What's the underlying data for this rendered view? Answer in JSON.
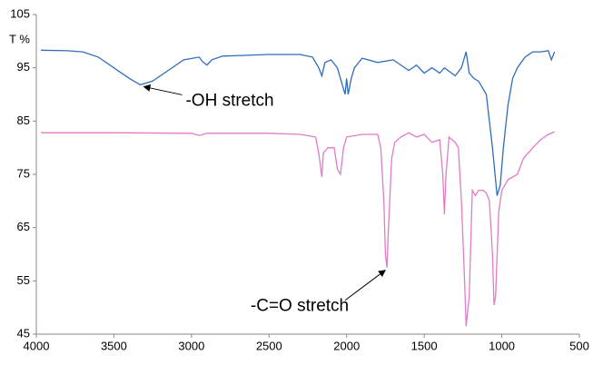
{
  "chart_data": {
    "type": "line",
    "y_label": "T %",
    "xlim": [
      4000,
      500
    ],
    "xticks": [
      4000,
      3500,
      3000,
      2500,
      2000,
      1500,
      1000,
      500
    ],
    "ylim": [
      45,
      105
    ],
    "yticks": [
      45,
      55,
      65,
      75,
      85,
      95,
      105
    ],
    "grid": false,
    "series": [
      {
        "color": "#2f6dbb",
        "x": [
          3970,
          3800,
          3700,
          3600,
          3500,
          3400,
          3330,
          3250,
          3150,
          3050,
          2950,
          2930,
          2900,
          2870,
          2800,
          2500,
          2300,
          2220,
          2180,
          2160,
          2140,
          2100,
          2060,
          2030,
          2010,
          2000,
          1990,
          1970,
          1950,
          1900,
          1800,
          1700,
          1600,
          1550,
          1500,
          1450,
          1400,
          1370,
          1300,
          1260,
          1230,
          1210,
          1180,
          1150,
          1120,
          1100,
          1080,
          1060,
          1040,
          1030,
          1010,
          990,
          960,
          930,
          900,
          850,
          800,
          750,
          700,
          680,
          660
        ],
        "values": [
          98.3,
          98.2,
          98,
          97,
          95,
          93,
          91.8,
          92.5,
          94.5,
          96.5,
          97,
          96.2,
          95.5,
          96.5,
          97.2,
          97.5,
          97.5,
          97,
          95,
          93.5,
          96,
          96.5,
          95,
          92,
          90,
          93,
          90,
          93,
          95,
          96.8,
          96,
          96.5,
          94.5,
          95.5,
          94,
          95,
          94,
          95,
          93.5,
          95,
          98,
          94,
          93,
          92.5,
          91,
          90,
          85,
          80,
          74,
          71,
          73,
          80,
          88,
          93,
          95,
          97,
          98,
          98,
          98.2,
          96.5,
          98
        ]
      },
      {
        "color": "#e07cc6",
        "x": [
          3970,
          3500,
          3000,
          2950,
          2900,
          2500,
          2300,
          2200,
          2180,
          2160,
          2150,
          2120,
          2080,
          2060,
          2040,
          2020,
          2000,
          1900,
          1800,
          1780,
          1760,
          1750,
          1740,
          1730,
          1710,
          1690,
          1650,
          1600,
          1550,
          1500,
          1450,
          1400,
          1380,
          1370,
          1360,
          1340,
          1300,
          1280,
          1260,
          1240,
          1230,
          1210,
          1190,
          1170,
          1150,
          1120,
          1100,
          1080,
          1060,
          1050,
          1040,
          1020,
          1000,
          960,
          900,
          860,
          800,
          750,
          700,
          660
        ],
        "values": [
          82.8,
          82.8,
          82.7,
          82.3,
          82.7,
          82.7,
          82.5,
          82,
          79,
          74.5,
          79,
          80,
          80,
          76,
          75,
          80,
          82,
          82.5,
          82.5,
          80,
          70,
          60,
          57.5,
          65,
          78,
          81,
          82,
          82.8,
          82,
          82.5,
          81,
          81.5,
          75,
          67.5,
          75,
          82,
          81,
          80,
          70,
          55,
          46.5,
          52,
          72,
          71,
          72,
          72,
          71.5,
          70,
          60,
          50.5,
          52,
          68,
          72,
          74,
          75,
          78,
          80,
          81.5,
          82.5,
          83
        ]
      }
    ],
    "annotations": [
      {
        "text": "-OH stretch",
        "x": 3330,
        "y": 91.8
      },
      {
        "text": "-C=O stretch",
        "x": 1740,
        "y": 57.5
      }
    ]
  }
}
